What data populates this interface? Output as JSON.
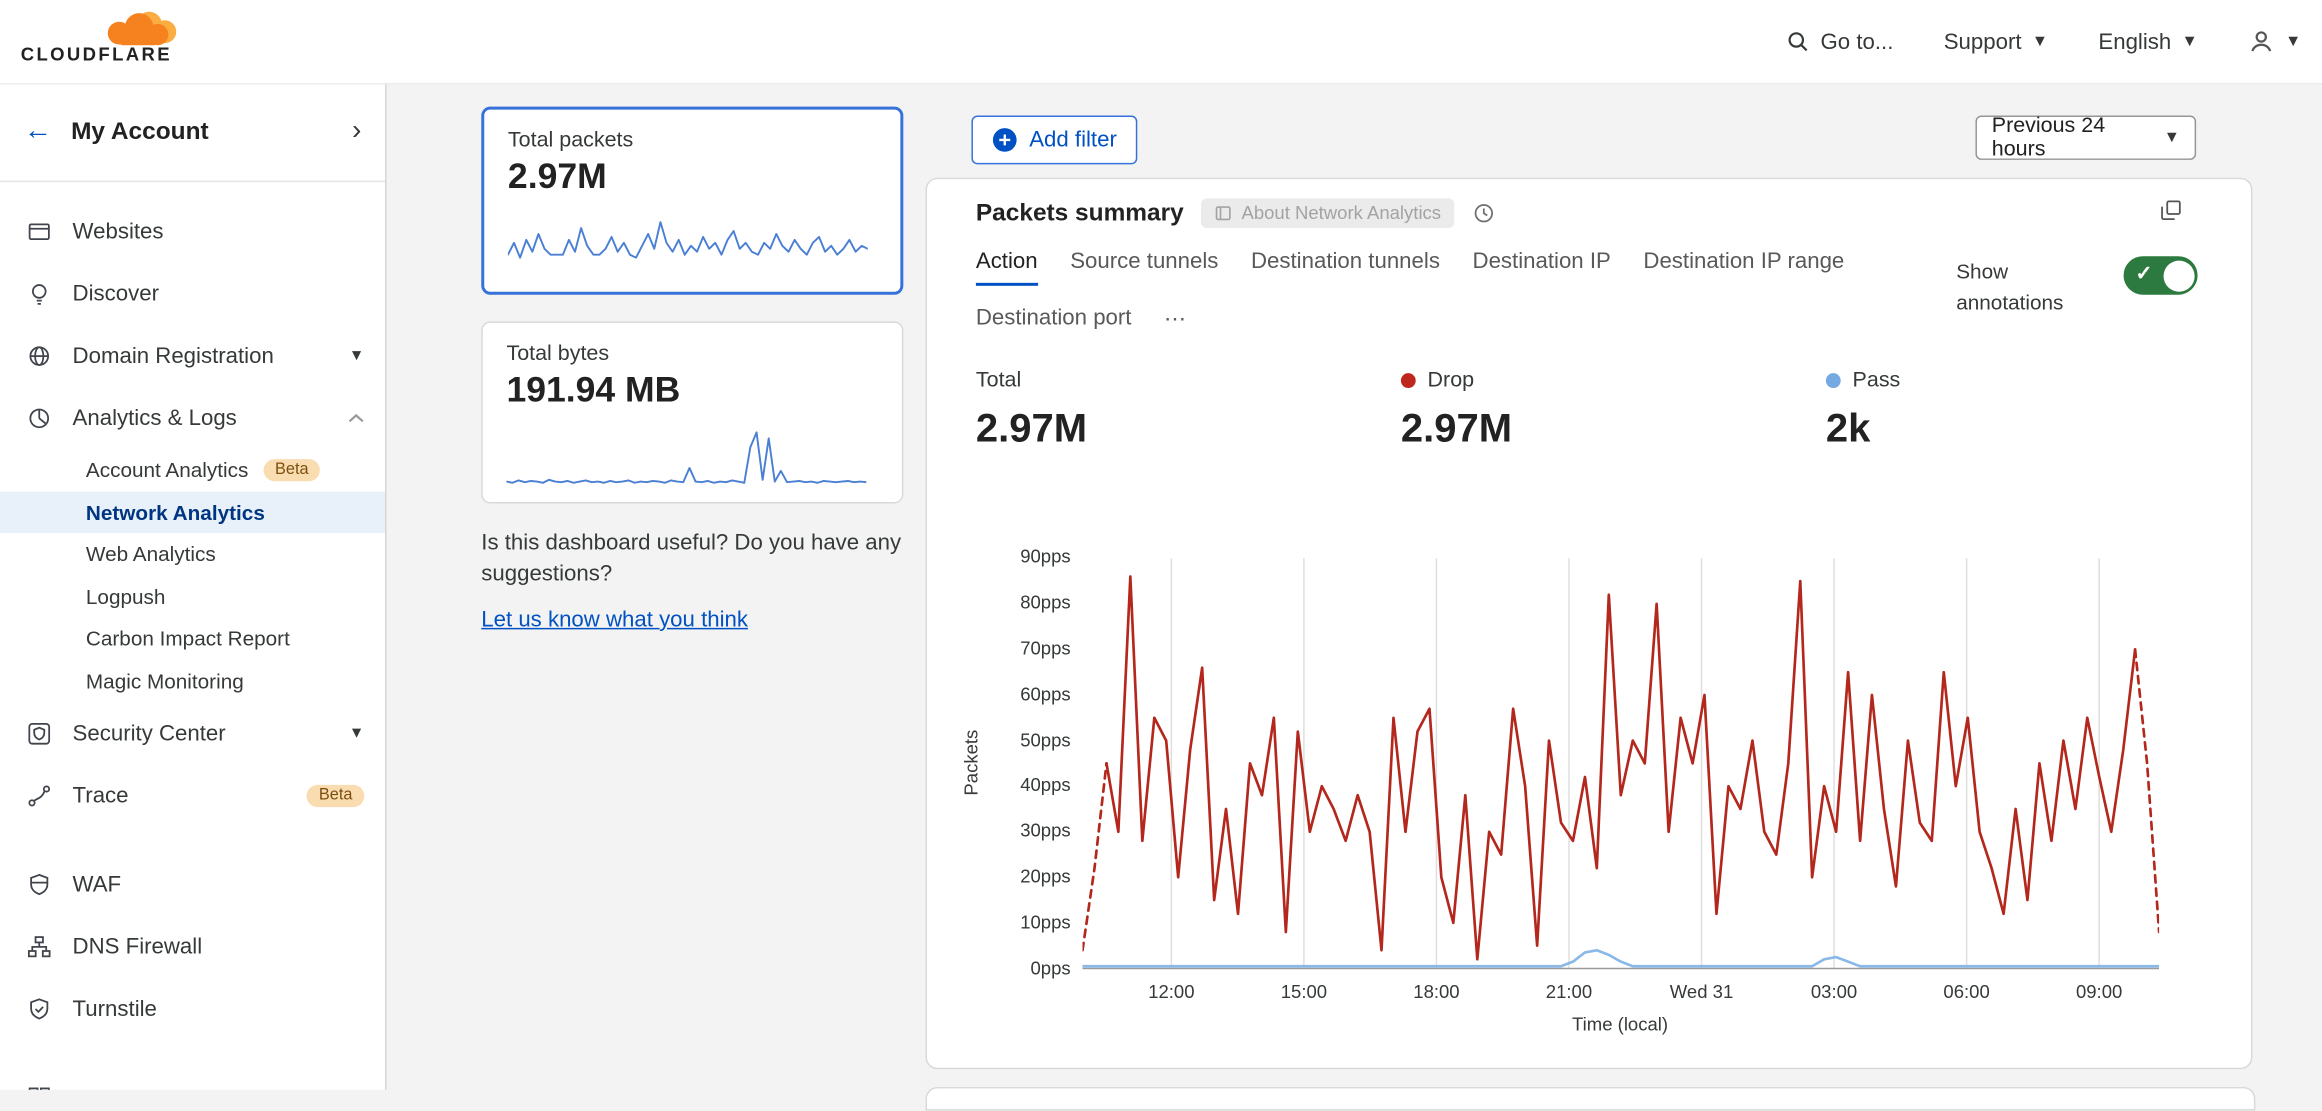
{
  "header": {
    "brand": "CLOUDFLARE",
    "goto": "Go to...",
    "support": "Support",
    "language": "English"
  },
  "sidebar": {
    "account_label": "My Account",
    "items": [
      {
        "label": "Websites"
      },
      {
        "label": "Discover"
      },
      {
        "label": "Domain Registration"
      },
      {
        "label": "Analytics & Logs"
      },
      {
        "label": "Security Center"
      },
      {
        "label": "Trace",
        "badge": "Beta"
      },
      {
        "label": "WAF"
      },
      {
        "label": "DNS Firewall"
      },
      {
        "label": "Turnstile"
      }
    ],
    "analytics_children": [
      {
        "label": "Account Analytics",
        "badge": "Beta"
      },
      {
        "label": "Network Analytics",
        "selected": true
      },
      {
        "label": "Web Analytics"
      },
      {
        "label": "Logpush"
      },
      {
        "label": "Carbon Impact Report"
      },
      {
        "label": "Magic Monitoring"
      }
    ]
  },
  "middle": {
    "total_packets": {
      "label": "Total packets",
      "value": "2.97M"
    },
    "total_bytes": {
      "label": "Total bytes",
      "value": "191.94 MB"
    },
    "feedback_text": "Is this dashboard useful? Do you have any suggestions?",
    "feedback_link": "Let us know what you think"
  },
  "main": {
    "add_filter_label": "Add filter",
    "time_range": "Previous 24 hours",
    "panel_title": "Packets summary",
    "about_badge": "About Network Analytics",
    "tabs": [
      "Action",
      "Source tunnels",
      "Destination tunnels",
      "Destination IP",
      "Destination IP range",
      "Destination port"
    ],
    "tabs_overflow": "⋯",
    "active_tab": "Action",
    "annotations_label": "Show annotations",
    "stats": {
      "total": {
        "label": "Total",
        "value": "2.97M"
      },
      "drop": {
        "label": "Drop",
        "value": "2.97M",
        "color": "#b3271d"
      },
      "pass": {
        "label": "Pass",
        "value": "2k",
        "color": "#74a9e2"
      }
    }
  },
  "colors": {
    "accent_blue": "#0051c3",
    "drop_red": "#b3271d",
    "pass_blue": "#8ab9e8",
    "toggle_green": "#2c7a3f",
    "selected_card_border": "#3672d9"
  },
  "chart_data": [
    {
      "type": "line",
      "title": "Packets summary",
      "xlabel": "Time (local)",
      "ylabel": "Packets",
      "x_ticks": [
        "12:00",
        "15:00",
        "18:00",
        "21:00",
        "Wed 31",
        "03:00",
        "06:00",
        "09:00"
      ],
      "y_ticks": [
        "0pps",
        "10pps",
        "20pps",
        "30pps",
        "40pps",
        "50pps",
        "60pps",
        "70pps",
        "80pps",
        "90pps"
      ],
      "ylim": [
        0,
        90
      ],
      "grid": "vertical",
      "legend_position": "top",
      "series": [
        {
          "name": "Drop",
          "color": "#b3271d",
          "dashed_head": 2,
          "dashed_tail": 2,
          "values": [
            4,
            22,
            45,
            30,
            86,
            28,
            55,
            50,
            20,
            48,
            66,
            15,
            35,
            12,
            45,
            38,
            55,
            8,
            52,
            30,
            40,
            35,
            28,
            38,
            30,
            4,
            55,
            30,
            52,
            57,
            20,
            10,
            38,
            2,
            30,
            25,
            57,
            40,
            5,
            50,
            32,
            28,
            42,
            22,
            82,
            38,
            50,
            45,
            80,
            30,
            55,
            45,
            60,
            12,
            40,
            35,
            50,
            30,
            25,
            45,
            85,
            20,
            40,
            30,
            65,
            28,
            60,
            35,
            18,
            50,
            32,
            28,
            65,
            40,
            55,
            30,
            22,
            12,
            35,
            15,
            45,
            28,
            50,
            35,
            55,
            42,
            30,
            48,
            70,
            45,
            8
          ]
        },
        {
          "name": "Pass",
          "color": "#8ab9e8",
          "values": [
            0.5,
            0.5,
            0.5,
            0.5,
            0.5,
            0.5,
            0.5,
            0.5,
            0.5,
            0.5,
            0.5,
            0.5,
            0.5,
            0.5,
            0.5,
            0.5,
            0.5,
            0.5,
            0.5,
            0.5,
            0.5,
            0.5,
            0.5,
            0.5,
            0.5,
            0.5,
            0.5,
            0.5,
            0.5,
            0.5,
            0.5,
            0.5,
            0.5,
            0.5,
            0.5,
            0.5,
            0.5,
            0.5,
            0.5,
            0.5,
            0.5,
            1.5,
            3.5,
            4,
            3,
            1.5,
            0.5,
            0.5,
            0.5,
            0.5,
            0.5,
            0.5,
            0.5,
            0.5,
            0.5,
            0.5,
            0.5,
            0.5,
            0.5,
            0.5,
            0.5,
            0.5,
            2,
            2.5,
            1.5,
            0.5,
            0.5,
            0.5,
            0.5,
            0.5,
            0.5,
            0.5,
            0.5,
            0.5,
            0.5,
            0.5,
            0.5,
            0.5,
            0.5,
            0.5,
            0.5,
            0.5,
            0.5,
            0.5,
            0.5,
            0.5,
            0.5,
            0.5,
            0.5,
            0.5,
            0.5
          ]
        }
      ]
    },
    {
      "type": "line",
      "title": "Total packets sparkline",
      "ylim": [
        0,
        100
      ],
      "series": [
        {
          "name": "Total packets",
          "color": "#4a7fd4",
          "values": [
            35,
            55,
            30,
            60,
            40,
            70,
            45,
            35,
            35,
            35,
            60,
            40,
            80,
            50,
            35,
            35,
            45,
            65,
            40,
            55,
            35,
            30,
            50,
            70,
            45,
            90,
            55,
            40,
            60,
            35,
            50,
            40,
            65,
            45,
            55,
            35,
            60,
            75,
            45,
            55,
            40,
            35,
            55,
            45,
            70,
            50,
            40,
            60,
            45,
            35,
            55,
            65,
            40,
            50,
            35,
            45,
            60,
            40,
            50,
            45
          ]
        }
      ]
    },
    {
      "type": "line",
      "title": "Total bytes sparkline",
      "ylim": [
        0,
        100
      ],
      "series": [
        {
          "name": "Total bytes",
          "color": "#4a7fd4",
          "values": [
            12,
            10,
            14,
            11,
            13,
            12,
            10,
            15,
            12,
            11,
            13,
            10,
            12,
            14,
            11,
            12,
            10,
            13,
            11,
            12,
            14,
            10,
            12,
            11,
            13,
            12,
            10,
            14,
            12,
            11,
            35,
            12,
            11,
            13,
            10,
            12,
            11,
            14,
            12,
            10,
            70,
            95,
            15,
            85,
            12,
            30,
            11,
            12,
            13,
            11,
            12,
            10,
            13,
            12,
            11,
            12,
            13,
            11,
            12,
            11
          ]
        }
      ]
    }
  ]
}
